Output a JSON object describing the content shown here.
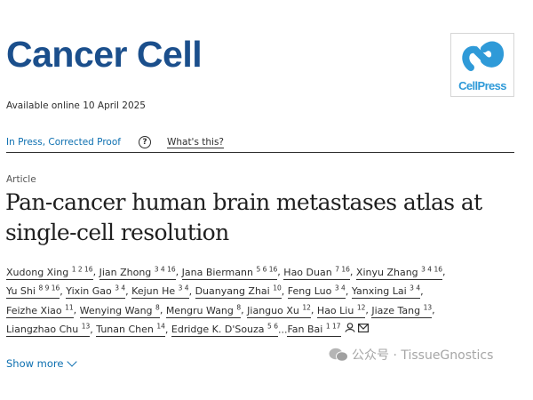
{
  "header": {
    "journal": "Cancer Cell",
    "available": "Available online 10 April 2025",
    "publisher_logo": "CellPress"
  },
  "status": {
    "stage": "In Press, Corrected Proof",
    "help_icon": "question-circle-icon",
    "whats_this": "What's this?"
  },
  "article": {
    "type": "Article",
    "title_line1": "Pan-cancer human brain metastases atlas at",
    "title_line2": "single-cell resolution"
  },
  "authors": [
    [
      {
        "name": "Xudong Xing",
        "sup": "1 2 16"
      },
      {
        "name": "Jian Zhong",
        "sup": "3 4 16"
      },
      {
        "name": "Jana Biermann",
        "sup": "5 6 16"
      },
      {
        "name": "Hao Duan",
        "sup": "7 16"
      },
      {
        "name": "Xinyu Zhang",
        "sup": "3 4 16"
      }
    ],
    [
      {
        "name": "Yu Shi",
        "sup": "8 9 16"
      },
      {
        "name": "Yixin Gao",
        "sup": "3 4"
      },
      {
        "name": "Kejun He",
        "sup": "3 4"
      },
      {
        "name": "Duanyang Zhai",
        "sup": "10"
      },
      {
        "name": "Feng Luo",
        "sup": "3 4"
      },
      {
        "name": "Yanxing Lai",
        "sup": "3 4"
      }
    ],
    [
      {
        "name": "Feizhe Xiao",
        "sup": "11"
      },
      {
        "name": "Wenying Wang",
        "sup": "8"
      },
      {
        "name": "Mengru Wang",
        "sup": "8"
      },
      {
        "name": "Jianguo Xu",
        "sup": "12"
      },
      {
        "name": "Hao Liu",
        "sup": "12"
      },
      {
        "name": "Jiaze Tang",
        "sup": "13"
      }
    ],
    [
      {
        "name": "Liangzhao Chu",
        "sup": "13"
      },
      {
        "name": "Tunan Chen",
        "sup": "14"
      },
      {
        "name": "Edridge K. D'Souza",
        "sup": "5 6"
      },
      {
        "name": "Fan Bai",
        "sup": "1 17"
      }
    ]
  ],
  "show_more": "Show more",
  "watermark": "公众号 · TissueGnostics",
  "colors": {
    "journal": "#1b4f8c",
    "link": "#0c6fb0",
    "logo": "#2f9ad8"
  }
}
